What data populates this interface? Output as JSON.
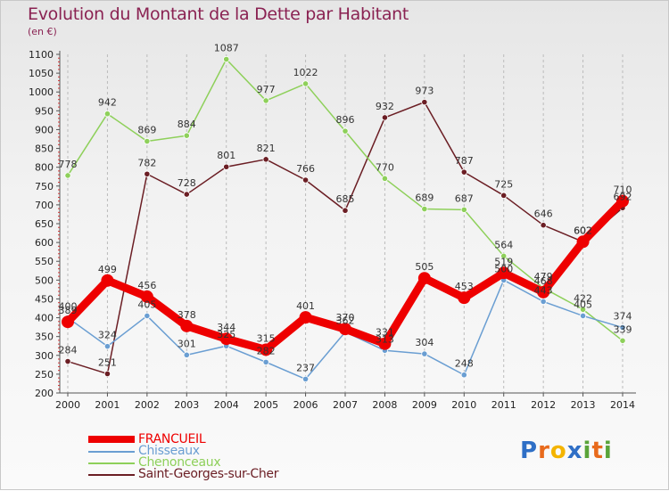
{
  "chart_data": {
    "type": "line",
    "title": "Evolution du Montant de la Dette par Habitant",
    "subtitle": "(en €)",
    "xlabel": "",
    "ylabel": "",
    "ylim": [
      200,
      1100
    ],
    "yticks": [
      200,
      250,
      300,
      350,
      400,
      450,
      500,
      550,
      600,
      650,
      700,
      750,
      800,
      850,
      900,
      950,
      1000,
      1050,
      1100
    ],
    "categories": [
      "2000",
      "2001",
      "2002",
      "2003",
      "2004",
      "2005",
      "2006",
      "2007",
      "2008",
      "2009",
      "2010",
      "2011",
      "2012",
      "2013",
      "2014"
    ],
    "grid": "vertical dashed",
    "legend_position": "bottom-left",
    "series": [
      {
        "name": "Saint-Georges-sur-Cher",
        "color": "#6b1e24",
        "values": [
          284,
          251,
          782,
          728,
          801,
          821,
          766,
          685,
          932,
          973,
          787,
          725,
          646,
          602,
          692
        ]
      },
      {
        "name": "Chenonceaux",
        "color": "#8ed05a",
        "values": [
          778,
          942,
          869,
          884,
          1087,
          977,
          1022,
          896,
          770,
          689,
          687,
          564,
          479,
          422,
          339
        ]
      },
      {
        "name": "Chisseaux",
        "color": "#6a9ed2",
        "values": [
          400,
          324,
          405,
          301,
          325,
          282,
          237,
          362,
          313,
          304,
          248,
          500,
          443,
          405,
          374
        ]
      },
      {
        "name": "FRANCUEIL",
        "color": "#ee0000",
        "values": [
          389,
          499,
          456,
          378,
          344,
          315,
          401,
          370,
          331,
          505,
          453,
          519,
          468,
          602,
          710
        ]
      }
    ]
  },
  "legend_items": [
    {
      "label": "FRANCUEIL",
      "color": "#ee0000"
    },
    {
      "label": "Chisseaux",
      "color": "#6a9ed2"
    },
    {
      "label": "Chenonceaux",
      "color": "#8ed05a"
    },
    {
      "label": "Saint-Georges-sur-Cher",
      "color": "#6b1e24"
    }
  ],
  "logo": {
    "letters": [
      "P",
      "r",
      "o",
      "x",
      "i",
      "t",
      "i"
    ],
    "colors": [
      "#2f6fc6",
      "#e86a1c",
      "#f4b400",
      "#2f6fc6",
      "#5aa43a",
      "#e86a1c",
      "#5aa43a"
    ]
  }
}
